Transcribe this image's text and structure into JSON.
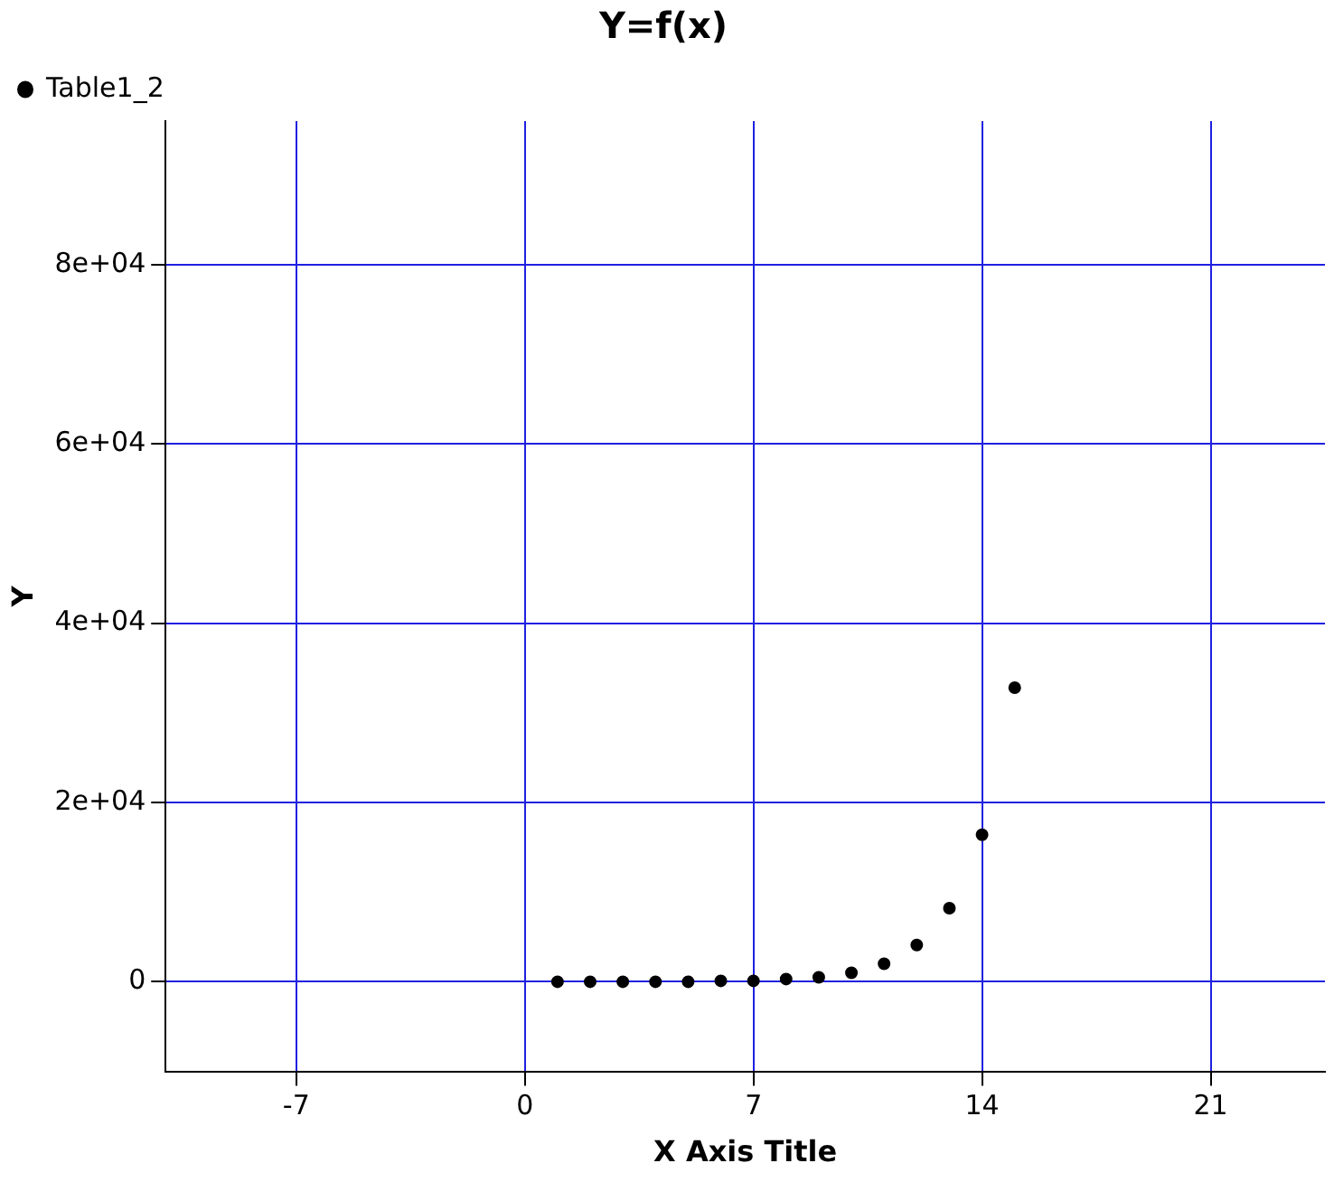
{
  "chart_data": {
    "type": "scatter",
    "title": "Y=f(x)",
    "xlabel": "X Axis Title",
    "ylabel": "Y",
    "x": [
      1,
      2,
      3,
      4,
      5,
      6,
      7,
      8,
      9,
      10,
      11,
      12,
      13,
      14,
      15
    ],
    "series": [
      {
        "name": "Table1_2",
        "color": "#000000",
        "values": [
          0,
          0,
          0,
          0,
          0,
          100,
          100,
          300,
          500,
          1000,
          2000,
          4100,
          8200,
          16400,
          32800
        ]
      }
    ],
    "xlim": [
      -11,
      24.5
    ],
    "xticks": [
      -7,
      0,
      7,
      14,
      21
    ],
    "ylim": [
      -10000,
      96000
    ],
    "yticks": [
      0,
      {
        "value": 20000,
        "label": "2e+04"
      },
      {
        "value": 40000,
        "label": "4e+04"
      },
      {
        "value": 60000,
        "label": "6e+04"
      },
      {
        "value": 80000,
        "label": "8e+04"
      }
    ],
    "grid": true,
    "legend": "top left",
    "marker": "circle"
  }
}
